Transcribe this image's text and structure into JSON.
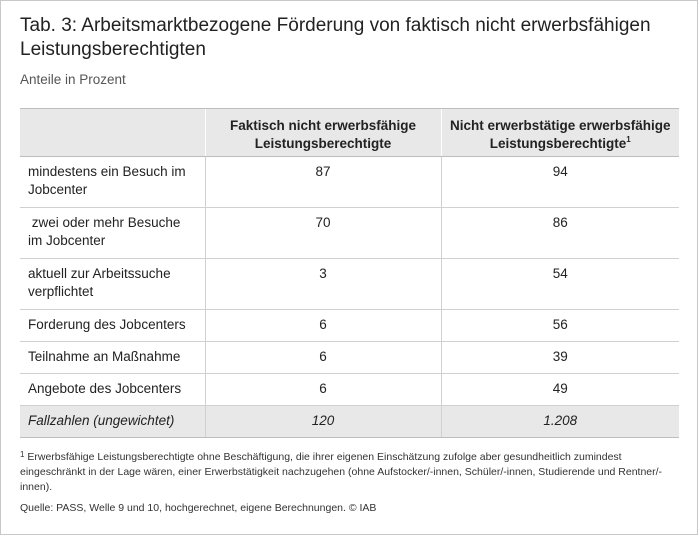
{
  "title": "Tab. 3:  Arbeitsmarktbezogene Förderung von faktisch nicht erwerbsfähigen Leistungsberechtigten",
  "subtitle": "Anteile in Prozent",
  "table": {
    "headers": {
      "stub": "",
      "col1": "Faktisch nicht erwerbsfähige Leistungsberechtigte",
      "col2": "Nicht erwerbstätige erwerbsfähige Leistungsberechtigte",
      "col2_note": "1"
    },
    "rows": [
      {
        "label": "mindestens ein Besuch im Jobcenter",
        "v1": "87",
        "v2": "94"
      },
      {
        "label": " zwei oder mehr Besuche im Jobcenter",
        "v1": "70",
        "v2": "86"
      },
      {
        "label": "aktuell zur Arbeitssuche verpflichtet",
        "v1": "3",
        "v2": "54"
      },
      {
        "label": "Forderung des Jobcenters",
        "v1": "6",
        "v2": "56"
      },
      {
        "label": "Teilnahme an Maßnahme",
        "v1": "6",
        "v2": "39"
      },
      {
        "label": "Angebote des Jobcenters",
        "v1": "6",
        "v2": "49"
      }
    ],
    "total": {
      "label": "Fallzahlen (ungewichtet)",
      "v1": "120",
      "v2": "1.208"
    }
  },
  "footnote": {
    "mark": "1",
    "text": " Erwerbsfähige Leistungsberechtigte ohne Beschäftigung, die ihrer eigenen Einschätzung zufolge aber gesundheitlich zumindest eingeschränkt in der Lage wären, einer Erwerbstätigkeit nachzugehen (ohne Aufstocker/-innen, Schüler/-innen, Studierende und Rentner/-innen)."
  },
  "source": "Quelle: PASS, Welle 9 und 10, hochgerechnet, eigene Berechnungen. © IAB"
}
